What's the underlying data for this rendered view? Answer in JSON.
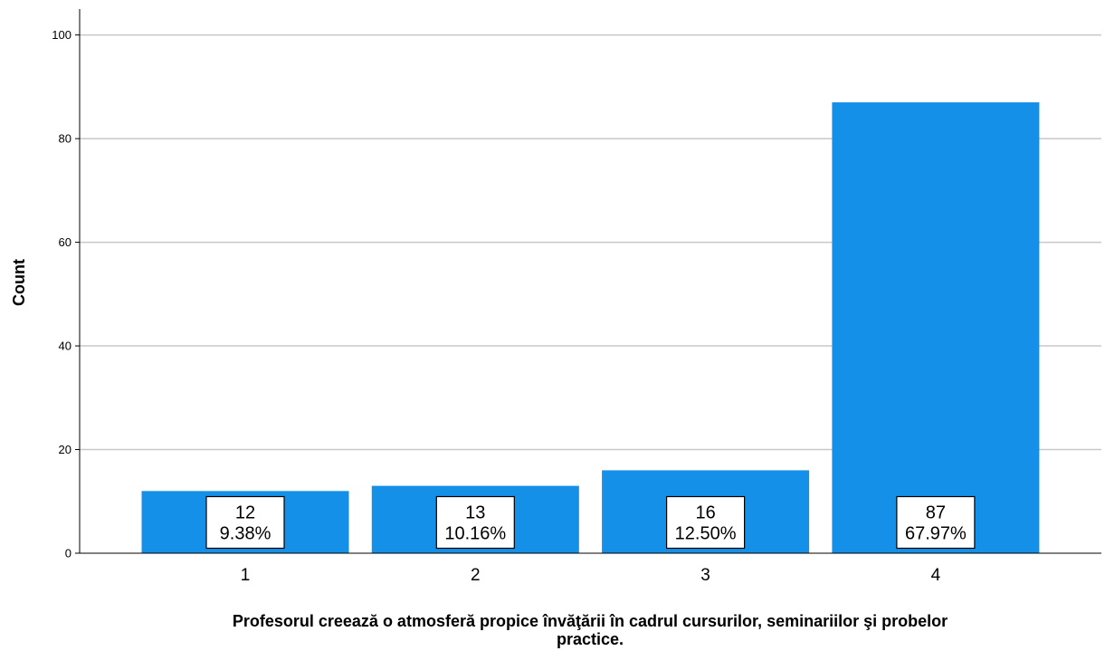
{
  "chart_data": {
    "type": "bar",
    "categories": [
      "1",
      "2",
      "3",
      "4"
    ],
    "values": [
      12,
      13,
      16,
      87
    ],
    "percent_labels": [
      "9.38%",
      "10.16%",
      "12.50%",
      "67.97%"
    ],
    "ylabel": "Count",
    "xlabel_lines": [
      "Profesorul creează o atmosferă propice învăţării în cadrul cursurilor, seminariilor şi probelor",
      "practice."
    ],
    "ylim": [
      0,
      105
    ],
    "yticks": [
      0,
      20,
      40,
      60,
      80,
      100
    ],
    "grid": true,
    "legend": "none",
    "bar_color": "#1490E8",
    "grid_color": "#C8C8C8"
  }
}
